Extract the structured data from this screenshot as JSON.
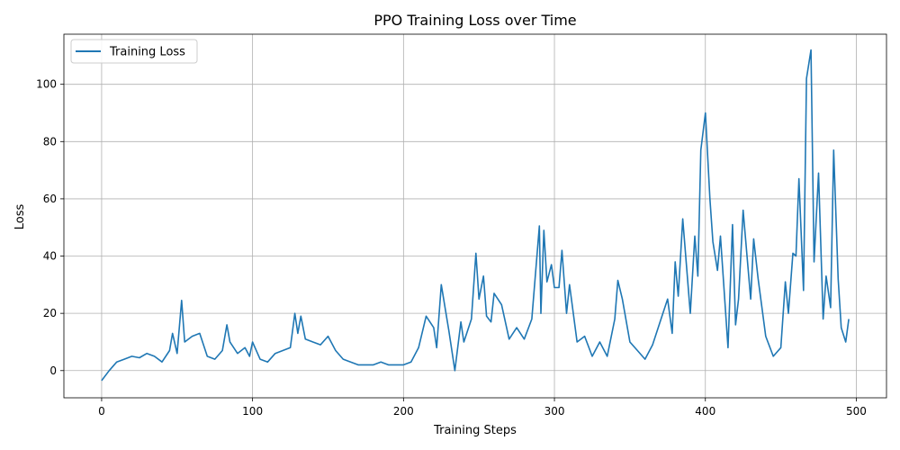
{
  "chart_data": {
    "type": "line",
    "title": "PPO Training Loss over Time",
    "xlabel": "Training Steps",
    "ylabel": "Loss",
    "xlim": [
      -25,
      520
    ],
    "ylim": [
      -9.5,
      117.5
    ],
    "xticks": [
      0,
      100,
      200,
      300,
      400,
      500
    ],
    "yticks": [
      0,
      20,
      40,
      60,
      80,
      100
    ],
    "xtick_labels": [
      "0",
      "100",
      "200",
      "300",
      "400",
      "500"
    ],
    "ytick_labels": [
      "0",
      "20",
      "40",
      "60",
      "80",
      "100"
    ],
    "grid": true,
    "legend_position": "top-left",
    "colors": {
      "series": "#1f77b4",
      "grid": "#b0b0b0",
      "axis": "#000000"
    },
    "series": [
      {
        "name": "Training Loss",
        "x": [
          0,
          5,
          10,
          15,
          20,
          25,
          30,
          35,
          40,
          45,
          47,
          50,
          53,
          55,
          60,
          65,
          70,
          75,
          80,
          83,
          85,
          90,
          95,
          98,
          100,
          105,
          110,
          115,
          120,
          125,
          128,
          130,
          132,
          135,
          140,
          145,
          150,
          155,
          160,
          165,
          170,
          175,
          180,
          185,
          190,
          195,
          200,
          205,
          210,
          215,
          220,
          222,
          225,
          230,
          234,
          238,
          240,
          245,
          248,
          250,
          253,
          255,
          258,
          260,
          265,
          270,
          275,
          280,
          285,
          290,
          291,
          293,
          295,
          298,
          300,
          303,
          305,
          308,
          310,
          315,
          320,
          325,
          330,
          335,
          340,
          342,
          345,
          350,
          355,
          360,
          365,
          370,
          375,
          378,
          380,
          382,
          385,
          390,
          393,
          395,
          397,
          400,
          403,
          405,
          408,
          410,
          415,
          418,
          420,
          422,
          425,
          430,
          432,
          435,
          440,
          445,
          450,
          453,
          455,
          458,
          460,
          462,
          465,
          467,
          470,
          472,
          475,
          478,
          480,
          483,
          485,
          488,
          490,
          493,
          495
        ],
        "y": [
          -3.5,
          0,
          3,
          4,
          5,
          4.5,
          6,
          5,
          3,
          7,
          13,
          6,
          24.5,
          10,
          12,
          13,
          5,
          4,
          7,
          16,
          10,
          6,
          8,
          5,
          10,
          4,
          3,
          6,
          7,
          8,
          20,
          13,
          19,
          11,
          10,
          9,
          12,
          7,
          4,
          3,
          2,
          2,
          2,
          3,
          2,
          2,
          2,
          3,
          8,
          19,
          15,
          8,
          30,
          14,
          0,
          17,
          10,
          18,
          41,
          25,
          33,
          19,
          17,
          27,
          23,
          11,
          15,
          11,
          18,
          50.5,
          20,
          49,
          31,
          37,
          29,
          29,
          42,
          20,
          30,
          10,
          12,
          5,
          10,
          5,
          18,
          31.5,
          25,
          10,
          7,
          4,
          9,
          17,
          25,
          13,
          38,
          26,
          53,
          20,
          47,
          33,
          77,
          90,
          60,
          45,
          35,
          47,
          8,
          51,
          16,
          25,
          56,
          25,
          46,
          32,
          12,
          5,
          8,
          31,
          20,
          41,
          40,
          67,
          28,
          102,
          112,
          38,
          69,
          18,
          33,
          22,
          77,
          32,
          15,
          10,
          18
        ]
      }
    ]
  }
}
